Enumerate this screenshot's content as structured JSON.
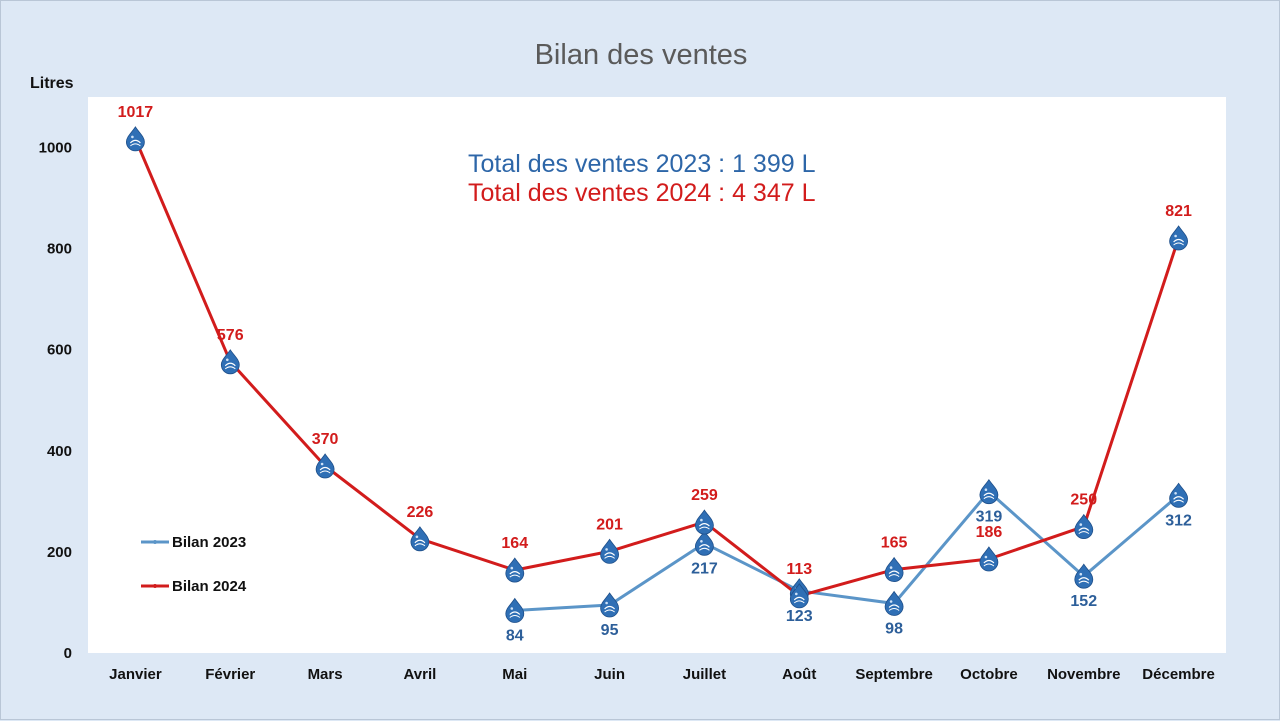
{
  "chart_data": {
    "type": "line",
    "title": "Bilan des ventes",
    "ylabel": "Litres",
    "xlabel": "",
    "ylim": [
      0,
      1100
    ],
    "yticks": [
      0,
      200,
      400,
      600,
      800,
      1000
    ],
    "grid": false,
    "legend_position": "left",
    "categories": [
      "Janvier",
      "Février",
      "Mars",
      "Avril",
      "Mai",
      "Juin",
      "Juillet",
      "Août",
      "Septembre",
      "Octobre",
      "Novembre",
      "Décembre"
    ],
    "series": [
      {
        "name": "Bilan 2023",
        "color": "#5b95c8",
        "label_color": "#2d5f9a",
        "values": [
          null,
          null,
          null,
          null,
          84,
          95,
          217,
          123,
          98,
          319,
          152,
          312
        ],
        "label_position": "below"
      },
      {
        "name": "Bilan 2024",
        "color": "#d21c1c",
        "label_color": "#d21c1c",
        "values": [
          1017,
          576,
          370,
          226,
          164,
          201,
          259,
          113,
          165,
          186,
          250,
          821
        ],
        "label_position": "above"
      }
    ],
    "annotations": [
      {
        "text": "Total des ventes 2023 : 1 399 L",
        "color": "#2d66a8"
      },
      {
        "text": "Total des ventes 2024 : 4 347 L",
        "color": "#d21c1c"
      }
    ],
    "marker_icon": "water-drop-icon",
    "marker_color": "#2f6fb5"
  }
}
